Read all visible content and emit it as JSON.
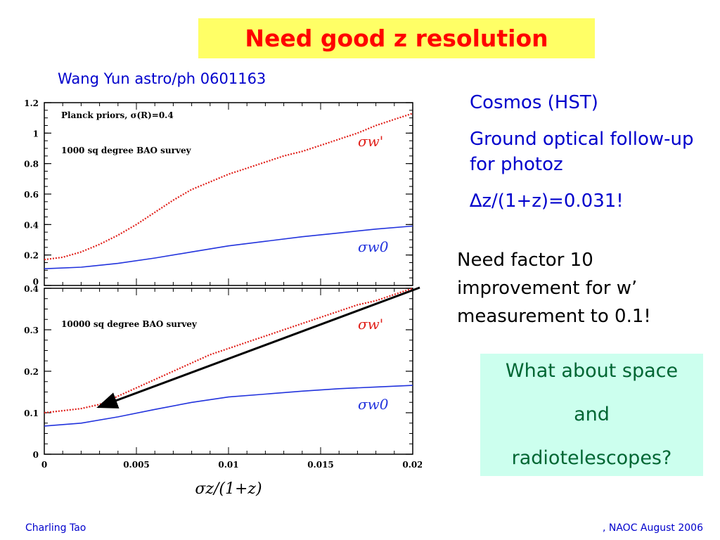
{
  "slide": {
    "title": "Need good z resolution",
    "citation": "Wang Yun astro/ph 0601163",
    "bullets": [
      "Cosmos (HST)",
      "Ground optical follow-up for photoz",
      "∆z/(1+z)=0.031!"
    ],
    "note": "Need factor 10 improvement for w’ measurement to 0.1!",
    "question_lines": [
      "What about space",
      "and",
      "radiotelescopes?"
    ],
    "footer_left": "Charling Tao",
    "footer_right": ",   NAOC August 2006"
  },
  "colors": {
    "title_bg": "#ffff66",
    "title_text": "#ff0000",
    "bullet_text": "#0000cc",
    "question_bg": "#ccffee",
    "question_text": "#006633",
    "red_series": "#e0201a",
    "blue_series": "#2233dd"
  },
  "chart_data": [
    {
      "type": "line",
      "annotations": [
        "Planck priors, σ(R)=0.4",
        "1000 sq degree BAO survey"
      ],
      "xlabel": "σz/(1+z)",
      "xlim": [
        0,
        0.02
      ],
      "ylim": [
        0,
        1.2
      ],
      "yticks": [
        "0",
        "0.2",
        "0.4",
        "0.6",
        "0.8",
        "1",
        "1.2"
      ],
      "grid": false,
      "legend": "inline-right",
      "series": [
        {
          "name": "σw'",
          "style": "dotted",
          "color": "#e0201a",
          "x": [
            0,
            0.001,
            0.002,
            0.003,
            0.004,
            0.005,
            0.006,
            0.007,
            0.008,
            0.009,
            0.01,
            0.011,
            0.012,
            0.013,
            0.014,
            0.015,
            0.016,
            0.017,
            0.018,
            0.019,
            0.02
          ],
          "y": [
            0.17,
            0.185,
            0.22,
            0.27,
            0.33,
            0.4,
            0.48,
            0.56,
            0.63,
            0.68,
            0.73,
            0.77,
            0.81,
            0.85,
            0.88,
            0.92,
            0.96,
            1.0,
            1.05,
            1.09,
            1.13
          ]
        },
        {
          "name": "σw0",
          "style": "solid",
          "color": "#2233dd",
          "x": [
            0,
            0.002,
            0.004,
            0.006,
            0.008,
            0.01,
            0.012,
            0.014,
            0.016,
            0.018,
            0.02
          ],
          "y": [
            0.11,
            0.12,
            0.145,
            0.18,
            0.22,
            0.26,
            0.29,
            0.32,
            0.345,
            0.37,
            0.39
          ]
        }
      ]
    },
    {
      "type": "line",
      "annotations": [
        "10000 sq degree BAO survey"
      ],
      "xlabel": "σz/(1+z)",
      "xlim": [
        0,
        0.02
      ],
      "ylim": [
        0,
        0.4
      ],
      "xticks": [
        "0",
        "0.005",
        "0.01",
        "0.015",
        "0.02"
      ],
      "yticks": [
        "0",
        "0.1",
        "0.2",
        "0.3",
        "0.4"
      ],
      "grid": false,
      "legend": "inline-right",
      "series": [
        {
          "name": "σw'",
          "style": "dotted",
          "color": "#e0201a",
          "x": [
            0,
            0.001,
            0.002,
            0.003,
            0.004,
            0.005,
            0.006,
            0.007,
            0.008,
            0.009,
            0.01,
            0.011,
            0.012,
            0.013,
            0.014,
            0.015,
            0.016,
            0.017,
            0.018,
            0.019,
            0.02
          ],
          "y": [
            0.1,
            0.105,
            0.11,
            0.12,
            0.14,
            0.16,
            0.18,
            0.2,
            0.22,
            0.24,
            0.255,
            0.27,
            0.285,
            0.3,
            0.315,
            0.33,
            0.345,
            0.36,
            0.37,
            0.385,
            0.4
          ]
        },
        {
          "name": "σw0",
          "style": "solid",
          "color": "#2233dd",
          "x": [
            0,
            0.002,
            0.004,
            0.006,
            0.008,
            0.01,
            0.012,
            0.014,
            0.016,
            0.018,
            0.02
          ],
          "y": [
            0.068,
            0.075,
            0.09,
            0.108,
            0.125,
            0.138,
            0.145,
            0.152,
            0.158,
            0.162,
            0.166
          ]
        }
      ]
    }
  ]
}
